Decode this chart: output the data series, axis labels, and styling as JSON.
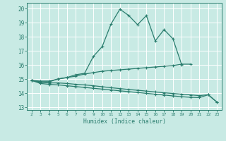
{
  "x": [
    2,
    3,
    4,
    5,
    6,
    7,
    8,
    9,
    10,
    11,
    12,
    13,
    14,
    15,
    16,
    17,
    18,
    19,
    20,
    21,
    22,
    23
  ],
  "line1": [
    14.9,
    14.8,
    14.8,
    15.0,
    15.1,
    15.3,
    15.4,
    16.6,
    17.3,
    18.9,
    19.95,
    19.5,
    18.85,
    19.5,
    17.7,
    18.5,
    17.85,
    16.0,
    null,
    null,
    null,
    null
  ],
  "line2": [
    14.9,
    14.85,
    14.85,
    15.0,
    15.1,
    15.2,
    15.35,
    15.45,
    15.55,
    15.6,
    15.65,
    15.7,
    15.75,
    15.8,
    15.85,
    15.9,
    15.95,
    16.05,
    16.05,
    null,
    null,
    null
  ],
  "line3": [
    14.9,
    14.75,
    14.72,
    14.72,
    14.68,
    14.62,
    14.58,
    14.52,
    14.45,
    14.38,
    14.32,
    14.25,
    14.2,
    14.14,
    14.08,
    14.02,
    13.97,
    13.92,
    13.87,
    13.82,
    13.88,
    13.35
  ],
  "line4": [
    14.9,
    14.68,
    14.62,
    14.58,
    14.52,
    14.46,
    14.4,
    14.34,
    14.28,
    14.22,
    14.16,
    14.1,
    14.04,
    13.98,
    13.92,
    13.86,
    13.8,
    13.74,
    13.7,
    13.68,
    13.88,
    13.35
  ],
  "color": "#2a7d6e",
  "bg_color": "#c8eae4",
  "grid_color": "#b0ddd6",
  "xlabel": "Humidex (Indice chaleur)",
  "xlim": [
    1.5,
    23.5
  ],
  "ylim": [
    12.8,
    20.4
  ],
  "yticks": [
    13,
    14,
    15,
    16,
    17,
    18,
    19,
    20
  ],
  "xticks": [
    2,
    3,
    4,
    5,
    6,
    7,
    8,
    9,
    10,
    11,
    12,
    13,
    14,
    15,
    16,
    17,
    18,
    19,
    20,
    21,
    22,
    23
  ],
  "marker": "+",
  "markersize": 3.5,
  "linewidth": 0.9
}
